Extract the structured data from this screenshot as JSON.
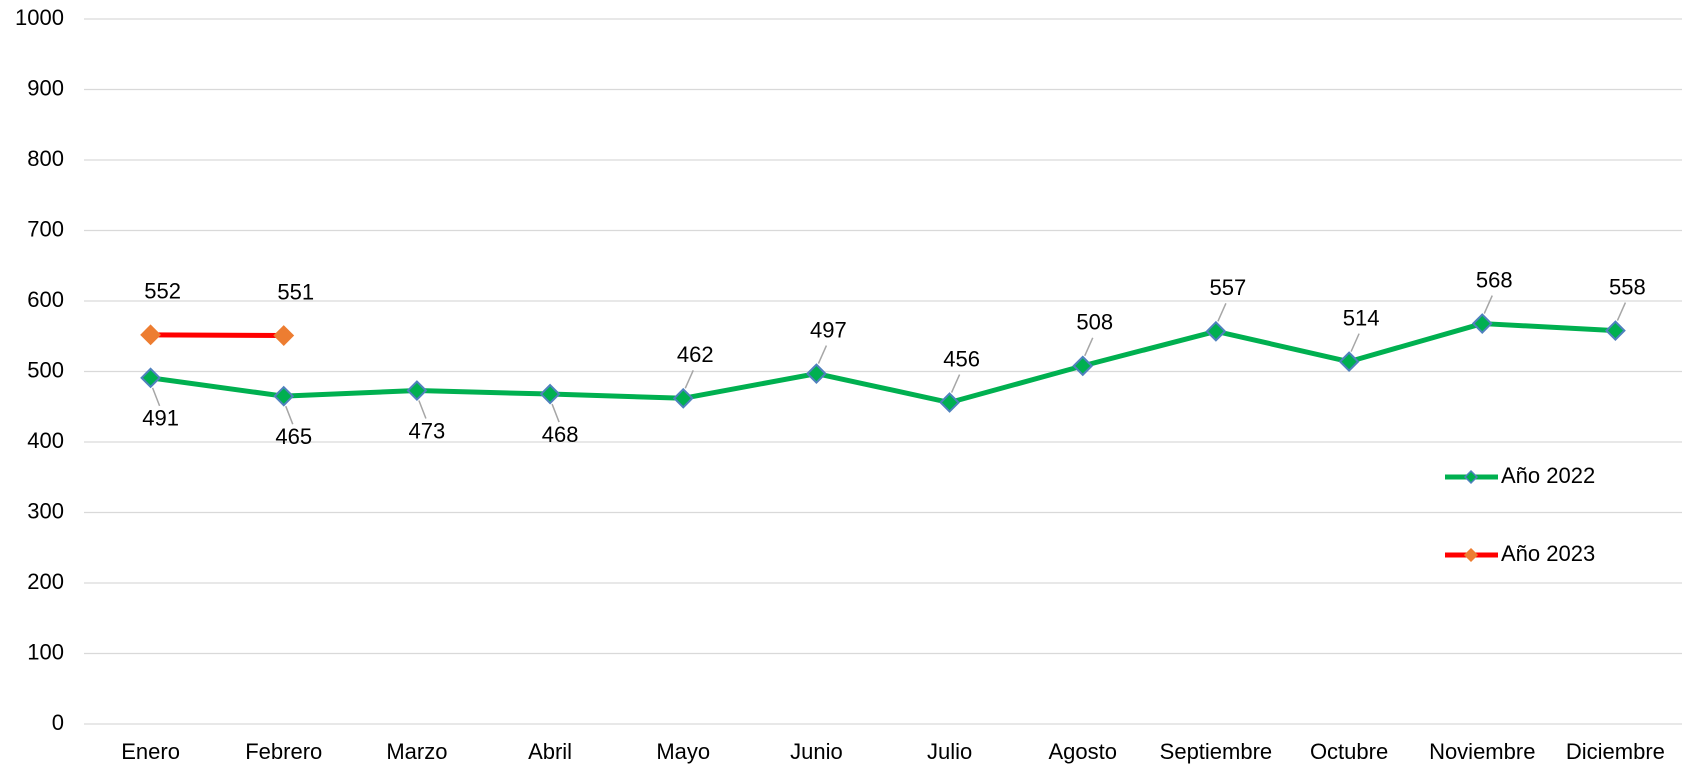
{
  "chart_data": {
    "type": "line",
    "categories": [
      "Enero",
      "Febrero",
      "Marzo",
      "Abril",
      "Mayo",
      "Junio",
      "Julio",
      "Agosto",
      "Septiembre",
      "Octubre",
      "Noviembre",
      "Diciembre"
    ],
    "series": [
      {
        "name": "Año 2022",
        "color": "#00b050",
        "marker_color": "#00b050",
        "marker_edge": "#4f81bd",
        "values": [
          491,
          465,
          473,
          468,
          462,
          497,
          456,
          508,
          557,
          514,
          568,
          558
        ]
      },
      {
        "name": "Año 2023",
        "color": "#ff0000",
        "marker_color": "#ed7d31",
        "marker_edge": "#ed7d31",
        "values": [
          552,
          551,
          null,
          null,
          null,
          null,
          null,
          null,
          null,
          null,
          null,
          null
        ]
      }
    ],
    "ylim": [
      0,
      1000
    ],
    "yticks": [
      0,
      100,
      200,
      300,
      400,
      500,
      600,
      700,
      800,
      900,
      1000
    ],
    "grid": true,
    "legend": "right"
  }
}
